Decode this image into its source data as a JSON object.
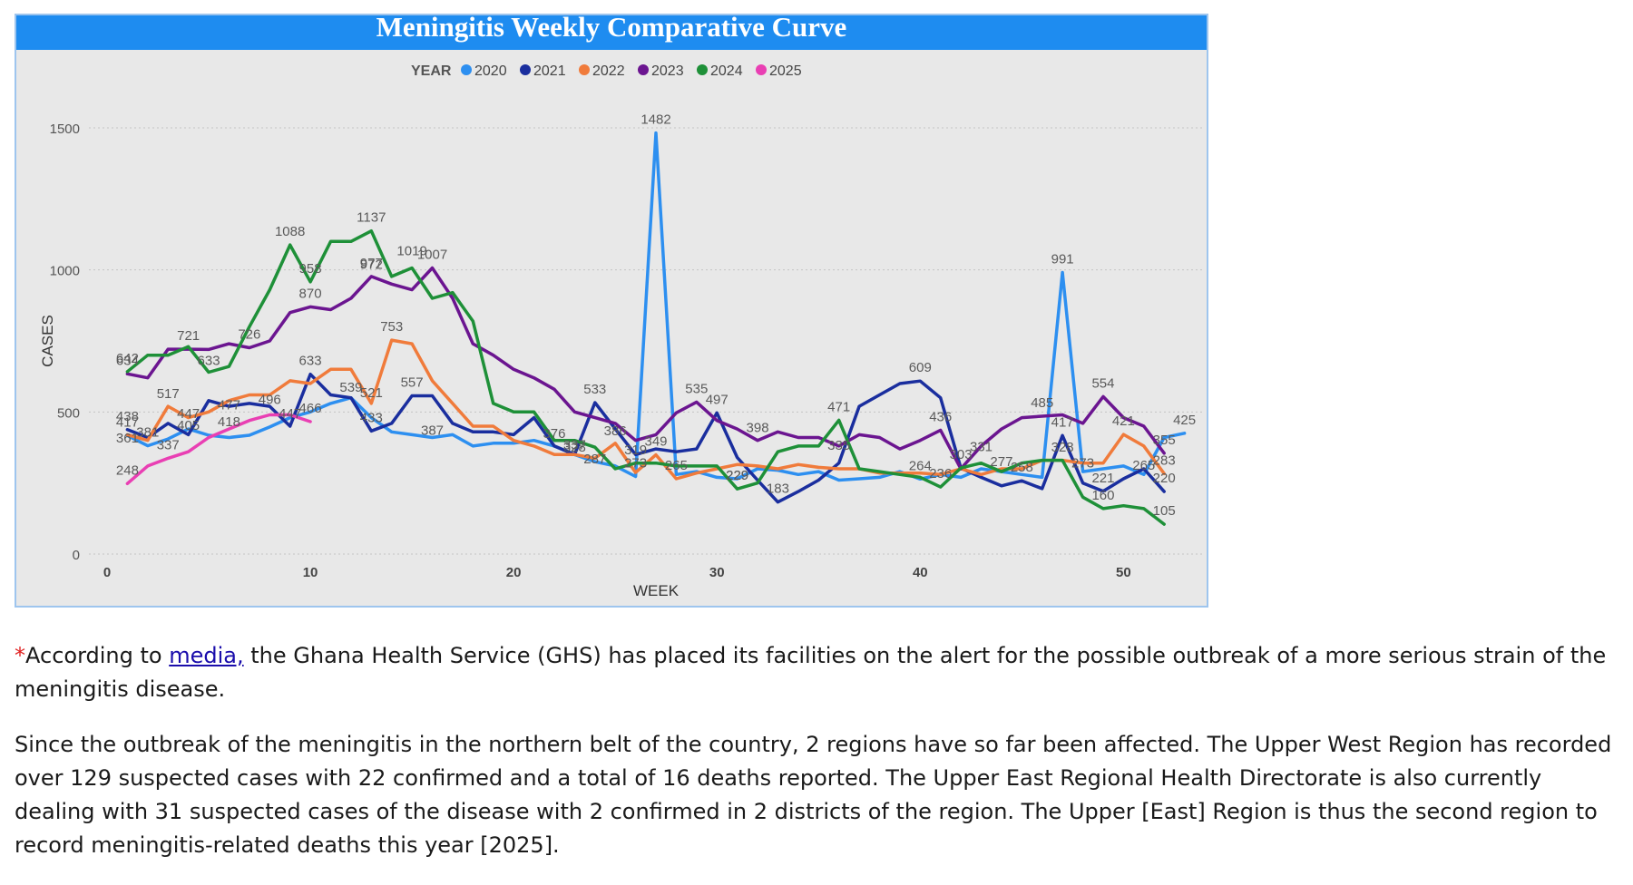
{
  "chart_data": {
    "type": "line",
    "title": "Meningitis Weekly Comparative Curve",
    "xlabel": "WEEK",
    "ylabel": "CASES",
    "xlim": [
      0,
      54
    ],
    "ylim": [
      0,
      1500
    ],
    "xticks": [
      0,
      10,
      20,
      30,
      40,
      50
    ],
    "yticks": [
      0,
      500,
      1000,
      1500
    ],
    "grid": true,
    "legend": {
      "title": "YEAR",
      "position": "top-center"
    },
    "series": [
      {
        "name": "2020",
        "color": "#2d8ff0",
        "x": [
          1,
          2,
          3,
          4,
          5,
          6,
          7,
          8,
          9,
          10,
          11,
          12,
          13,
          14,
          15,
          16,
          17,
          18,
          19,
          20,
          21,
          22,
          23,
          24,
          25,
          26,
          27,
          28,
          29,
          30,
          31,
          32,
          33,
          34,
          35,
          36,
          37,
          38,
          39,
          40,
          41,
          42,
          43,
          44,
          45,
          46,
          47,
          48,
          49,
          50,
          51,
          52,
          53
        ],
        "values": [
          417,
          381,
          405,
          440,
          418,
          410,
          418,
          447,
          480,
          500,
          530,
          550,
          480,
          430,
          420,
          410,
          420,
          380,
          390,
          390,
          400,
          380,
          350,
          325,
          310,
          273,
          1482,
          280,
          290,
          270,
          265,
          300,
          295,
          280,
          290,
          260,
          265,
          270,
          290,
          264,
          280,
          270,
          300,
          290,
          280,
          270,
          991,
          290,
          300,
          310,
          280,
          410,
          425
        ]
      },
      {
        "name": "2021",
        "color": "#1a2e9e",
        "x": [
          1,
          2,
          3,
          4,
          5,
          6,
          7,
          8,
          9,
          10,
          11,
          12,
          13,
          14,
          15,
          16,
          17,
          18,
          19,
          20,
          21,
          22,
          23,
          24,
          25,
          26,
          27,
          28,
          29,
          30,
          31,
          32,
          33,
          34,
          35,
          36,
          37,
          38,
          39,
          40,
          41,
          42,
          43,
          44,
          45,
          46,
          47,
          48,
          49,
          50,
          51,
          52
        ],
        "values": [
          438,
          410,
          460,
          420,
          540,
          520,
          530,
          520,
          450,
          633,
          560,
          550,
          433,
          460,
          557,
          557,
          460,
          430,
          430,
          420,
          480,
          380,
          350,
          533,
          440,
          350,
          370,
          360,
          370,
          497,
          340,
          260,
          183,
          220,
          260,
          320,
          520,
          560,
          600,
          609,
          550,
          303,
          270,
          240,
          258,
          230,
          417,
          250,
          221,
          265,
          300,
          220
        ]
      },
      {
        "name": "2022",
        "color": "#f07b3b",
        "x": [
          1,
          2,
          3,
          4,
          5,
          6,
          7,
          8,
          9,
          10,
          11,
          12,
          13,
          14,
          15,
          16,
          17,
          18,
          19,
          20,
          21,
          22,
          23,
          24,
          25,
          26,
          27,
          28,
          29,
          30,
          31,
          32,
          33,
          34,
          35,
          36,
          37,
          38,
          39,
          40,
          41,
          42,
          43,
          44,
          45,
          46,
          47,
          48,
          49,
          50,
          51,
          52
        ],
        "values": [
          420,
          400,
          520,
          480,
          500,
          540,
          560,
          560,
          610,
          600,
          650,
          650,
          530,
          753,
          740,
          610,
          530,
          450,
          450,
          400,
          380,
          350,
          350,
          337,
          390,
          287,
          349,
          265,
          285,
          300,
          315,
          310,
          300,
          315,
          305,
          300,
          300,
          285,
          285,
          285,
          280,
          300,
          280,
          300,
          300,
          330,
          330,
          320,
          320,
          421,
          380,
          283
        ]
      },
      {
        "name": "2023",
        "color": "#6b1590",
        "x": [
          1,
          2,
          3,
          4,
          5,
          6,
          7,
          8,
          9,
          10,
          11,
          12,
          13,
          14,
          15,
          16,
          17,
          18,
          19,
          20,
          21,
          22,
          23,
          24,
          25,
          26,
          27,
          28,
          29,
          30,
          31,
          32,
          33,
          34,
          35,
          36,
          37,
          38,
          39,
          40,
          41,
          42,
          43,
          44,
          45,
          46,
          47,
          48,
          49,
          50,
          51,
          52
        ],
        "values": [
          634,
          620,
          721,
          721,
          720,
          740,
          726,
          750,
          850,
          870,
          860,
          900,
          977,
          950,
          930,
          1007,
          900,
          740,
          700,
          650,
          620,
          580,
          500,
          480,
          460,
          400,
          420,
          497,
          535,
          470,
          440,
          400,
          430,
          410,
          410,
          380,
          420,
          410,
          370,
          400,
          436,
          300,
          380,
          440,
          480,
          485,
          490,
          460,
          554,
          480,
          450,
          355
        ]
      },
      {
        "name": "2024",
        "color": "#1e9038",
        "x": [
          1,
          2,
          3,
          4,
          5,
          6,
          7,
          8,
          9,
          10,
          11,
          12,
          13,
          14,
          15,
          16,
          17,
          18,
          19,
          20,
          21,
          22,
          23,
          24,
          25,
          26,
          27,
          28,
          29,
          30,
          31,
          32,
          33,
          34,
          35,
          36,
          37,
          38,
          39,
          40,
          41,
          42,
          43,
          44,
          45,
          46,
          47,
          48,
          49,
          50,
          51,
          52
        ],
        "values": [
          642,
          700,
          700,
          730,
          640,
          660,
          800,
          930,
          1088,
          958,
          1100,
          1100,
          1137,
          977,
          1007,
          900,
          920,
          820,
          530,
          500,
          500,
          400,
          400,
          376,
          300,
          320,
          320,
          310,
          310,
          310,
          229,
          250,
          360,
          380,
          380,
          471,
          300,
          290,
          280,
          270,
          236,
          303,
          320,
          290,
          320,
          330,
          330,
          200,
          160,
          170,
          160,
          105
        ]
      },
      {
        "name": "2025",
        "color": "#e93fb3",
        "x": [
          1,
          2,
          3,
          4,
          5,
          6,
          7,
          8,
          9,
          10
        ],
        "values": [
          248,
          310,
          337,
          360,
          410,
          440,
          470,
          490,
          490,
          466
        ]
      }
    ],
    "annotations": [
      {
        "x": 1,
        "y": 642,
        "label": "642"
      },
      {
        "x": 1,
        "y": 634,
        "label": "634"
      },
      {
        "x": 1,
        "y": 438,
        "label": "438"
      },
      {
        "x": 1,
        "y": 417,
        "label": "417"
      },
      {
        "x": 1,
        "y": 361,
        "label": "361"
      },
      {
        "x": 1,
        "y": 248,
        "label": "248"
      },
      {
        "x": 2,
        "y": 381,
        "label": "381"
      },
      {
        "x": 3,
        "y": 337,
        "label": "337"
      },
      {
        "x": 3,
        "y": 517,
        "label": "517"
      },
      {
        "x": 4,
        "y": 721,
        "label": "721"
      },
      {
        "x": 4,
        "y": 447,
        "label": "447"
      },
      {
        "x": 4,
        "y": 405,
        "label": "405"
      },
      {
        "x": 5,
        "y": 633,
        "label": "633"
      },
      {
        "x": 6,
        "y": 477,
        "label": "477"
      },
      {
        "x": 6,
        "y": 418,
        "label": "418"
      },
      {
        "x": 7,
        "y": 726,
        "label": "726"
      },
      {
        "x": 8,
        "y": 496,
        "label": "496"
      },
      {
        "x": 9,
        "y": 447,
        "label": "447"
      },
      {
        "x": 9,
        "y": 1088,
        "label": "1088"
      },
      {
        "x": 10,
        "y": 633,
        "label": "633"
      },
      {
        "x": 10,
        "y": 466,
        "label": "466"
      },
      {
        "x": 10,
        "y": 958,
        "label": "958"
      },
      {
        "x": 10,
        "y": 870,
        "label": "870"
      },
      {
        "x": 12,
        "y": 539,
        "label": "539"
      },
      {
        "x": 13,
        "y": 1137,
        "label": "1137"
      },
      {
        "x": 13,
        "y": 977,
        "label": "977"
      },
      {
        "x": 13,
        "y": 972,
        "label": "972"
      },
      {
        "x": 13,
        "y": 521,
        "label": "521"
      },
      {
        "x": 13,
        "y": 433,
        "label": "433"
      },
      {
        "x": 14,
        "y": 753,
        "label": "753"
      },
      {
        "x": 15,
        "y": 557,
        "label": "557"
      },
      {
        "x": 15,
        "y": 1019,
        "label": "1019"
      },
      {
        "x": 16,
        "y": 1007,
        "label": "1007"
      },
      {
        "x": 16,
        "y": 387,
        "label": "387"
      },
      {
        "x": 22,
        "y": 376,
        "label": "376"
      },
      {
        "x": 23,
        "y": 328,
        "label": "328"
      },
      {
        "x": 23,
        "y": 337,
        "label": "337"
      },
      {
        "x": 24,
        "y": 533,
        "label": "533"
      },
      {
        "x": 24,
        "y": 287,
        "label": "287"
      },
      {
        "x": 25,
        "y": 386,
        "label": "386"
      },
      {
        "x": 26,
        "y": 319,
        "label": "319"
      },
      {
        "x": 26,
        "y": 273,
        "label": "273"
      },
      {
        "x": 27,
        "y": 1482,
        "label": "1482"
      },
      {
        "x": 27,
        "y": 349,
        "label": "349"
      },
      {
        "x": 28,
        "y": 265,
        "label": "265"
      },
      {
        "x": 29,
        "y": 535,
        "label": "535"
      },
      {
        "x": 30,
        "y": 497,
        "label": "497"
      },
      {
        "x": 31,
        "y": 229,
        "label": "229"
      },
      {
        "x": 31,
        "y": 229,
        "label": "229"
      },
      {
        "x": 32,
        "y": 398,
        "label": "398"
      },
      {
        "x": 33,
        "y": 183,
        "label": "183"
      },
      {
        "x": 36,
        "y": 471,
        "label": "471"
      },
      {
        "x": 36,
        "y": 335,
        "label": "335"
      },
      {
        "x": 40,
        "y": 609,
        "label": "609"
      },
      {
        "x": 40,
        "y": 264,
        "label": "264"
      },
      {
        "x": 41,
        "y": 436,
        "label": "436"
      },
      {
        "x": 41,
        "y": 236,
        "label": "236"
      },
      {
        "x": 42,
        "y": 303,
        "label": "303"
      },
      {
        "x": 43,
        "y": 331,
        "label": "331"
      },
      {
        "x": 44,
        "y": 277,
        "label": "277"
      },
      {
        "x": 45,
        "y": 258,
        "label": "258"
      },
      {
        "x": 46,
        "y": 485,
        "label": "485"
      },
      {
        "x": 47,
        "y": 991,
        "label": "991"
      },
      {
        "x": 47,
        "y": 417,
        "label": "417"
      },
      {
        "x": 47,
        "y": 328,
        "label": "328"
      },
      {
        "x": 48,
        "y": 273,
        "label": "273"
      },
      {
        "x": 49,
        "y": 554,
        "label": "554"
      },
      {
        "x": 49,
        "y": 221,
        "label": "221"
      },
      {
        "x": 49,
        "y": 160,
        "label": "160"
      },
      {
        "x": 50,
        "y": 421,
        "label": "421"
      },
      {
        "x": 51,
        "y": 265,
        "label": "265"
      },
      {
        "x": 52,
        "y": 355,
        "label": "355"
      },
      {
        "x": 52,
        "y": 283,
        "label": "283"
      },
      {
        "x": 52,
        "y": 220,
        "label": "220"
      },
      {
        "x": 52,
        "y": 105,
        "label": "105"
      },
      {
        "x": 53,
        "y": 425,
        "label": "425"
      }
    ]
  },
  "article": {
    "asterisk": "*",
    "p1_lead": "According to ",
    "p1_link": "media,",
    "p1_rest": " the Ghana Health Service (GHS) has placed its facilities on the alert for the possible outbreak of a more serious strain of the meningitis disease.",
    "p2": "Since the outbreak of the meningitis in the northern belt of the country, 2 regions have so far been affected. The Upper West Region has recorded over 129 suspected cases with 22 confirmed and a total of 16 deaths reported. The Upper East Regional Health Directorate is also currently dealing with 31 suspected cases of the disease with 2 confirmed in 2 districts of the region. The Upper [East] Region is thus the second region to record meningitis-related deaths this year [2025]."
  }
}
